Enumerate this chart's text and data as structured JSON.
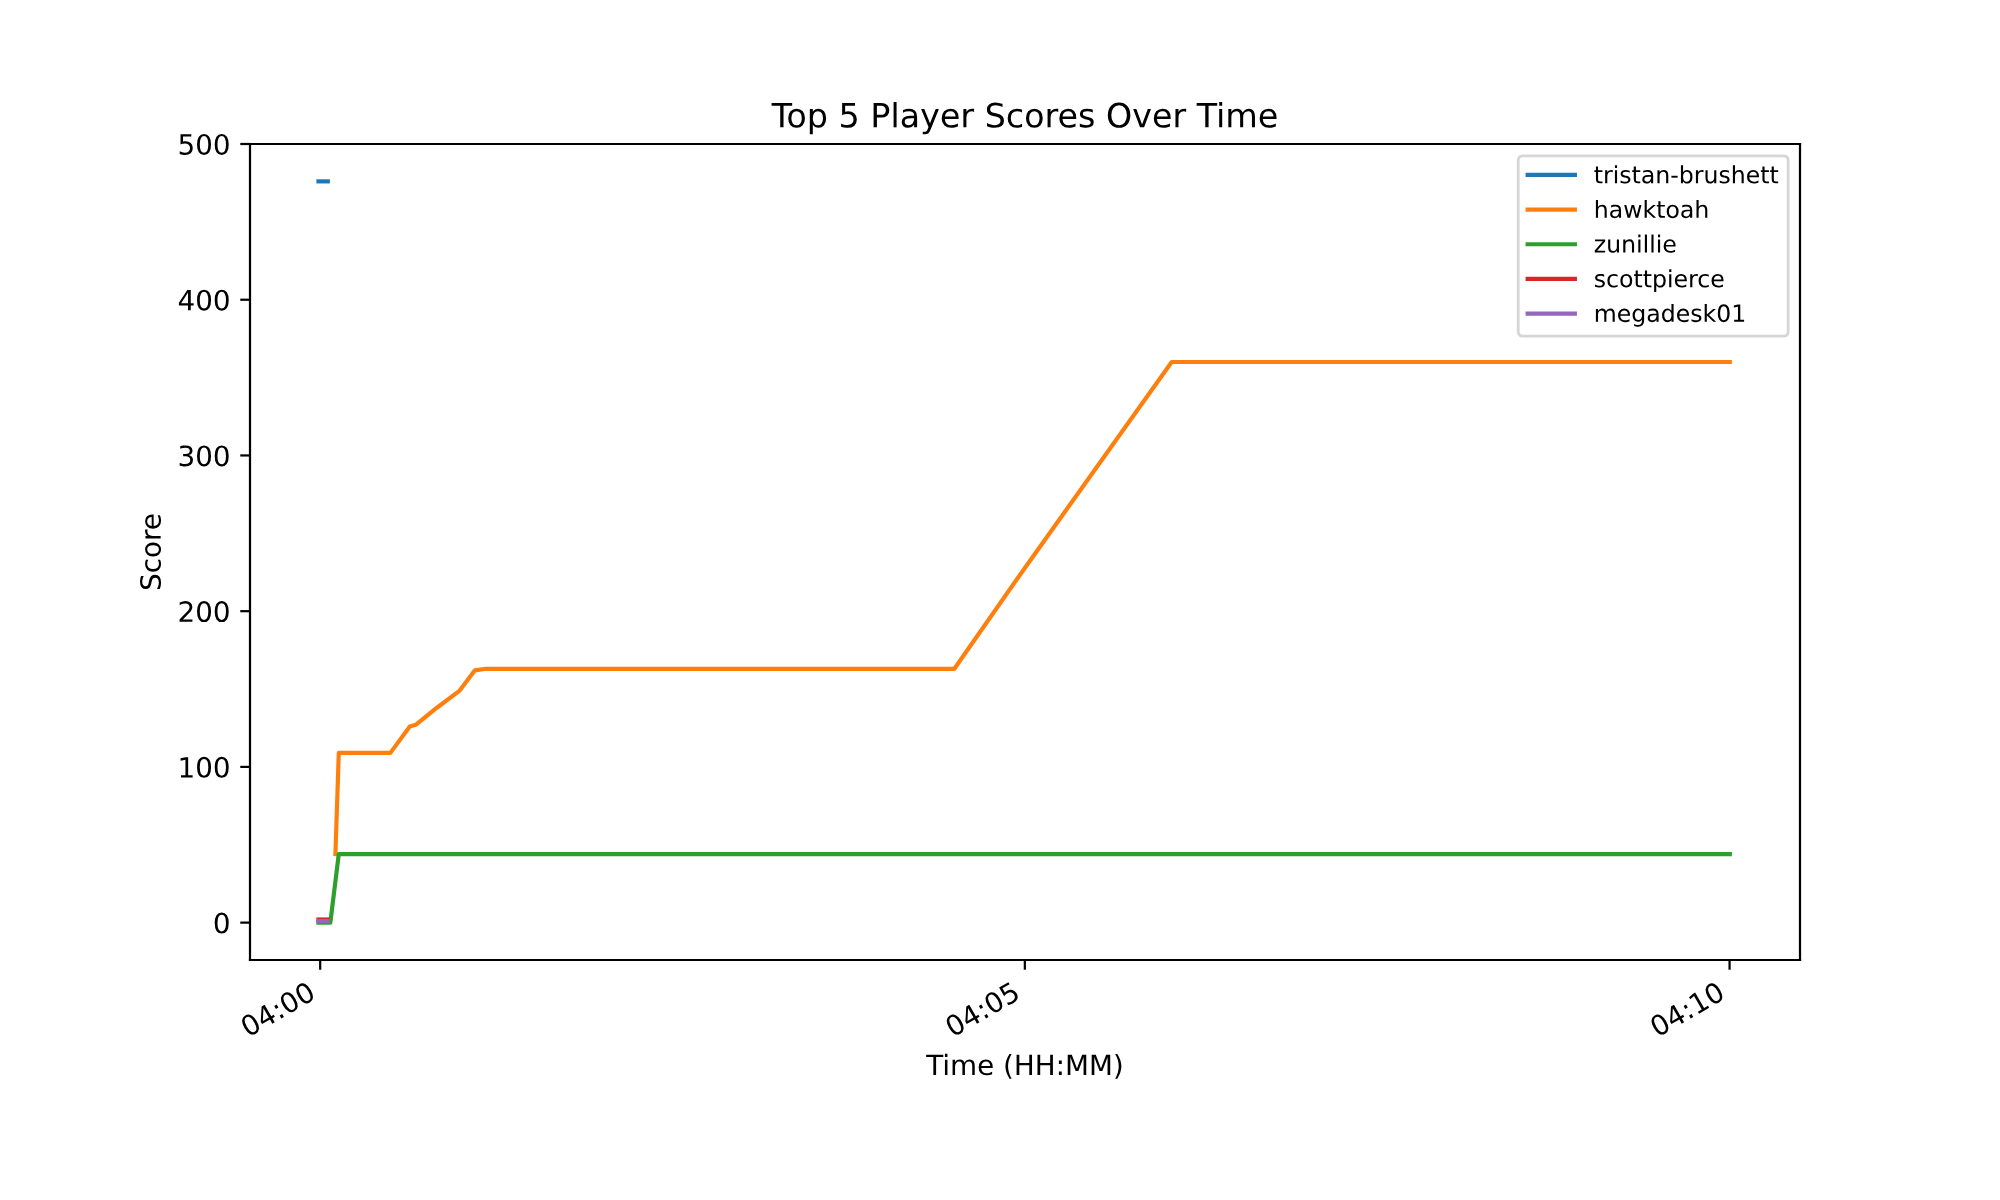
{
  "chart_data": {
    "type": "line",
    "title": "Top 5 Player Scores Over Time",
    "xlabel": "Time (HH:MM)",
    "ylabel": "Score",
    "xlim": [
      3.9917,
      4.175
    ],
    "xticks": [
      {
        "value": 4,
        "label": "04:00"
      },
      {
        "value": 4.08333,
        "label": "04:05"
      },
      {
        "value": 4.16667,
        "label": "04:10"
      }
    ],
    "ylim": [
      -24,
      500
    ],
    "yticks": [
      0,
      100,
      200,
      300,
      400,
      500
    ],
    "grid": false,
    "legend": "top right",
    "marker": "none",
    "line_style": "solid",
    "series": [
      {
        "name": "tristan-brushett",
        "color": "#1f77b4",
        "x": [
          3.9998,
          4.0009
        ],
        "values": [
          476,
          476
        ]
      },
      {
        "name": "hawktoah",
        "color": "#ff7f0e",
        "x": [
          4.0018,
          4.0022,
          4.0083,
          4.0106,
          4.0113,
          4.0138,
          4.0165,
          4.0183,
          4.0196,
          4.075,
          4.0831,
          4.1007,
          4.1667
        ],
        "values": [
          44,
          109,
          109,
          126,
          127,
          138,
          149,
          162,
          163,
          163,
          226,
          360,
          360
        ]
      },
      {
        "name": "zunillie",
        "color": "#2ca02c",
        "x": [
          3.9998,
          4.0012,
          4.0022,
          4.1667
        ],
        "values": [
          0,
          0,
          44,
          44
        ]
      },
      {
        "name": "scottpierce",
        "color": "#d62728",
        "x": [
          3.9998,
          4.0009
        ],
        "values": [
          2,
          2
        ]
      },
      {
        "name": "megadesk01",
        "color": "#9467bd",
        "x": [
          3.9998,
          4.0009
        ],
        "values": [
          1,
          1
        ]
      }
    ]
  }
}
